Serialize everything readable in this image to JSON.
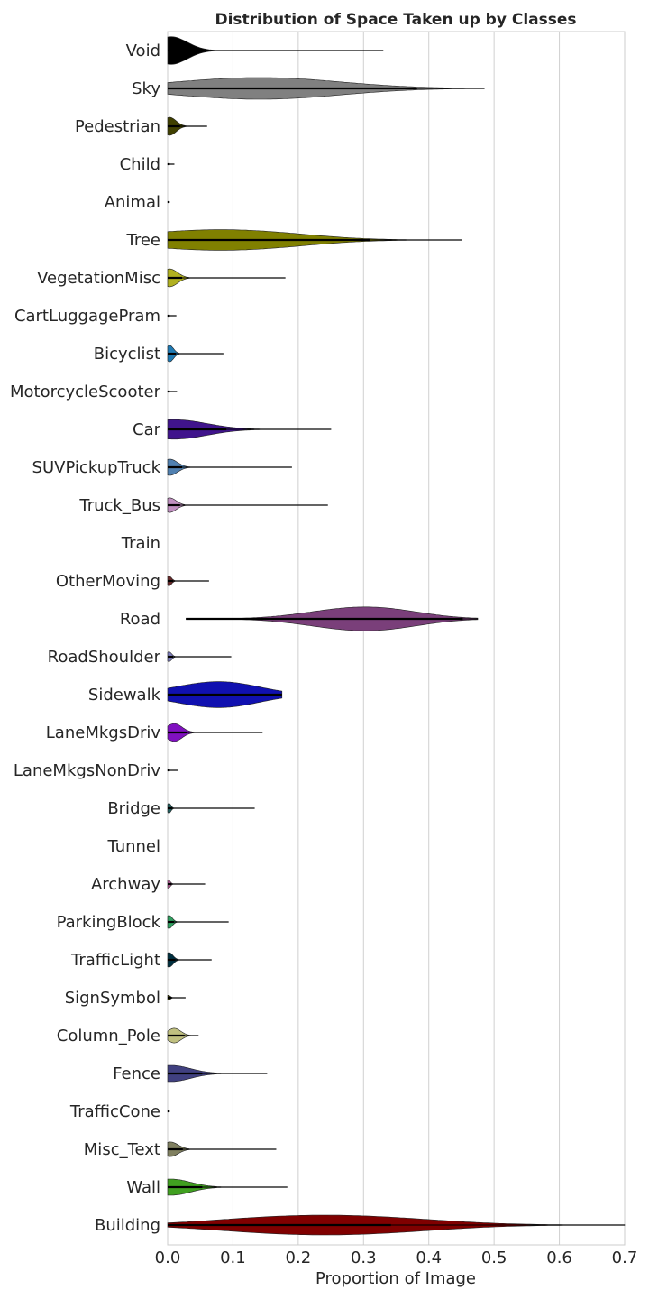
{
  "chart_data": {
    "type": "violin",
    "orientation": "horizontal",
    "title": "Distribution of Space Taken up by Classes",
    "xlabel": "Proportion of Image",
    "ylabel": "",
    "xlim": [
      0.0,
      0.7
    ],
    "xticks": [
      "0.0",
      "0.1",
      "0.2",
      "0.3",
      "0.4",
      "0.5",
      "0.6",
      "0.7"
    ],
    "grid": true,
    "classes": [
      {
        "name": "Void",
        "color": "#000000",
        "max": 0.33,
        "peak": 0.005,
        "spread": 0.025,
        "width": 0.85
      },
      {
        "name": "Sky",
        "color": "#808080",
        "min": 0.0,
        "max": 0.485,
        "peak": 0.1,
        "spread": 0.12,
        "width": 0.42,
        "peak2": 0.19,
        "width2": 0.3
      },
      {
        "name": "Pedestrian",
        "color": "#404000",
        "max": 0.06,
        "peak": 0.003,
        "spread": 0.01,
        "width": 0.55
      },
      {
        "name": "Child",
        "color": "#202000",
        "max": 0.01,
        "peak": 0.0,
        "spread": 0.002,
        "width": 0.04
      },
      {
        "name": "Animal",
        "color": "#400000",
        "max": 0.003,
        "peak": 0.0,
        "spread": 0.001,
        "width": 0.02
      },
      {
        "name": "Tree",
        "color": "#808000",
        "min": 0.0,
        "max": 0.45,
        "peak": 0.03,
        "spread": 0.1,
        "width": 0.45,
        "peak2": 0.15,
        "width2": 0.32
      },
      {
        "name": "VegetationMisc",
        "color": "#b0b020",
        "max": 0.18,
        "peak": 0.003,
        "spread": 0.012,
        "width": 0.55
      },
      {
        "name": "CartLuggagePram",
        "color": "#404040",
        "max": 0.013,
        "peak": 0.0,
        "spread": 0.002,
        "width": 0.04
      },
      {
        "name": "Bicyclist",
        "color": "#1f7ab4",
        "max": 0.085,
        "peak": 0.003,
        "spread": 0.006,
        "width": 0.5
      },
      {
        "name": "MotorcycleScooter",
        "color": "#2060a0",
        "max": 0.014,
        "peak": 0.0,
        "spread": 0.002,
        "width": 0.04
      },
      {
        "name": "Car",
        "color": "#40148c",
        "max": 0.25,
        "peak": 0.01,
        "spread": 0.05,
        "width": 0.6
      },
      {
        "name": "SUVPickupTruck",
        "color": "#5080b0",
        "max": 0.19,
        "peak": 0.003,
        "spread": 0.012,
        "width": 0.5
      },
      {
        "name": "Truck_Bus",
        "color": "#c090c0",
        "max": 0.245,
        "peak": 0.003,
        "spread": 0.01,
        "width": 0.45
      },
      {
        "name": "Train",
        "color": "#204060",
        "max": 0.0,
        "peak": 0.0,
        "spread": 0.0,
        "width": 0.0
      },
      {
        "name": "OtherMoving",
        "color": "#6a2a2a",
        "max": 0.063,
        "peak": 0.002,
        "spread": 0.004,
        "width": 0.3
      },
      {
        "name": "Road",
        "color": "#7a3f7a",
        "min": 0.028,
        "max": 0.475,
        "peak": 0.27,
        "spread": 0.07,
        "width": 0.48,
        "peak2": 0.34,
        "width2": 0.36
      },
      {
        "name": "RoadShoulder",
        "color": "#8080c0",
        "max": 0.097,
        "peak": 0.002,
        "spread": 0.004,
        "width": 0.3
      },
      {
        "name": "Sidewalk",
        "color": "#1010b0",
        "max": 0.175,
        "peak": 0.05,
        "spread": 0.06,
        "width": 0.44,
        "peak2": 0.1,
        "width2": 0.44
      },
      {
        "name": "LaneMkgsDriv",
        "color": "#8010c0",
        "max": 0.145,
        "peak": 0.01,
        "spread": 0.012,
        "width": 0.55
      },
      {
        "name": "LaneMkgsNonDriv",
        "color": "#3a1a5a",
        "max": 0.015,
        "peak": 0.0,
        "spread": 0.002,
        "width": 0.04
      },
      {
        "name": "Bridge",
        "color": "#206060",
        "max": 0.133,
        "peak": 0.002,
        "spread": 0.003,
        "width": 0.3
      },
      {
        "name": "Tunnel",
        "color": "#404080",
        "max": 0.0,
        "peak": 0.0,
        "spread": 0.0,
        "width": 0.0
      },
      {
        "name": "Archway",
        "color": "#c060a0",
        "max": 0.057,
        "peak": 0.001,
        "spread": 0.003,
        "width": 0.25
      },
      {
        "name": "ParkingBlock",
        "color": "#30a060",
        "max": 0.093,
        "peak": 0.002,
        "spread": 0.005,
        "width": 0.4
      },
      {
        "name": "TrafficLight",
        "color": "#003040",
        "max": 0.067,
        "peak": 0.002,
        "spread": 0.006,
        "width": 0.45
      },
      {
        "name": "SignSymbol",
        "color": "#404000",
        "max": 0.027,
        "peak": 0.001,
        "spread": 0.003,
        "width": 0.15
      },
      {
        "name": "Column_Pole",
        "color": "#c0c080",
        "max": 0.047,
        "peak": 0.01,
        "spread": 0.01,
        "width": 0.45
      },
      {
        "name": "Fence",
        "color": "#404080",
        "max": 0.152,
        "peak": 0.005,
        "spread": 0.03,
        "width": 0.5
      },
      {
        "name": "TrafficCone",
        "color": "#008080",
        "max": 0.003,
        "peak": 0.0,
        "spread": 0.001,
        "width": 0.02
      },
      {
        "name": "Misc_Text",
        "color": "#808060",
        "max": 0.166,
        "peak": 0.004,
        "spread": 0.012,
        "width": 0.45
      },
      {
        "name": "Wall",
        "color": "#40a020",
        "max": 0.183,
        "peak": 0.005,
        "spread": 0.03,
        "width": 0.5
      },
      {
        "name": "Building",
        "color": "#800000",
        "min": 0.0,
        "max": 0.7,
        "peak": 0.3,
        "spread": 0.12,
        "width": 0.45,
        "peak2": 0.15,
        "width2": 0.3
      }
    ]
  }
}
